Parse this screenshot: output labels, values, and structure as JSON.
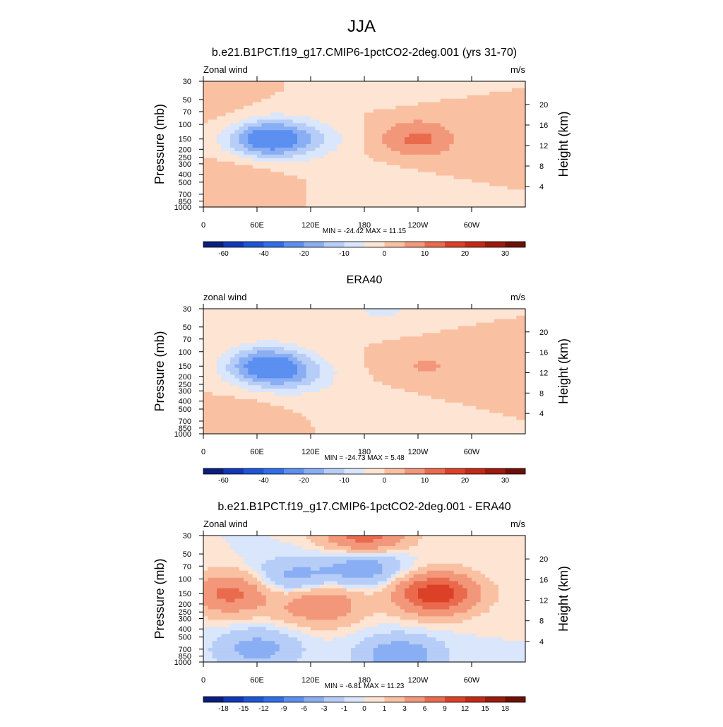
{
  "figure_title": "JJA",
  "chart_data": [
    {
      "type": "heatmap",
      "title": "b.e21.B1PCT.f19_g17.CMIP6-1pctCO2-2deg.001 (yrs 31-70)",
      "left_label": "Zonal wind",
      "right_label": "m/s",
      "ylabel": "Pressure (mb)",
      "y2label": "Height (km)",
      "x_ticks": [
        "0",
        "60E",
        "120E",
        "180",
        "120W",
        "60W"
      ],
      "x_tick_lon": [
        0,
        60,
        120,
        180,
        240,
        300
      ],
      "xlim": [
        0,
        360
      ],
      "pressure_ticks": [
        "30",
        "50",
        "70",
        "100",
        "150",
        "200",
        "250",
        "300",
        "400",
        "500",
        "700",
        "850",
        "1000"
      ],
      "pressure_values": [
        30,
        50,
        70,
        100,
        150,
        200,
        250,
        300,
        400,
        500,
        700,
        850,
        1000
      ],
      "height_ticks": [
        "4",
        "8",
        "12",
        "16",
        "20"
      ],
      "height_values": [
        4,
        8,
        12,
        16,
        20
      ],
      "ylim_pressure": [
        1000,
        30
      ],
      "stats": "MIN = -24.42  MAX =  11.15",
      "levels": [
        -70,
        -60,
        -50,
        -40,
        -30,
        -20,
        -15,
        -10,
        -5,
        0,
        5,
        10,
        15,
        20,
        25,
        30,
        35
      ],
      "colorbar_labels": [
        "-60",
        "-40",
        "-20",
        "-10",
        "0",
        "10",
        "20",
        "30"
      ],
      "colorbar_label_levels": [
        -60,
        -40,
        -20,
        -10,
        0,
        10,
        20,
        30
      ],
      "features": [
        {
          "lon": 70,
          "p": 150,
          "value": -24.4
        },
        {
          "lon": 120,
          "p": 150,
          "value": -8
        },
        {
          "lon": 240,
          "p": 150,
          "value": 11.2
        },
        {
          "lon": 200,
          "p": 30,
          "value": -4
        },
        {
          "lon": 200,
          "p": 500,
          "value": -3
        },
        {
          "lon": 40,
          "p": 400,
          "value": 4
        },
        {
          "lon": 30,
          "p": 80,
          "value": 2
        }
      ]
    },
    {
      "type": "heatmap",
      "title": "ERA40",
      "left_label": "zonal wind",
      "right_label": "m/s",
      "ylabel": "Pressure (mb)",
      "y2label": "Height (km)",
      "x_ticks": [
        "0",
        "60E",
        "120E",
        "180",
        "120W",
        "60W"
      ],
      "x_tick_lon": [
        0,
        60,
        120,
        180,
        240,
        300
      ],
      "xlim": [
        0,
        360
      ],
      "pressure_ticks": [
        "30",
        "50",
        "70",
        "100",
        "150",
        "200",
        "250",
        "300",
        "400",
        "500",
        "700",
        "850",
        "1000"
      ],
      "pressure_values": [
        30,
        50,
        70,
        100,
        150,
        200,
        250,
        300,
        400,
        500,
        700,
        850,
        1000
      ],
      "height_ticks": [
        "4",
        "8",
        "12",
        "16",
        "20"
      ],
      "height_values": [
        4,
        8,
        12,
        16,
        20
      ],
      "ylim_pressure": [
        1000,
        30
      ],
      "stats": "MIN = -24.73  MAX =   5.48",
      "levels": [
        -70,
        -60,
        -50,
        -40,
        -30,
        -20,
        -15,
        -10,
        -5,
        0,
        5,
        10,
        15,
        20,
        25,
        30,
        35
      ],
      "colorbar_labels": [
        "-60",
        "-40",
        "-20",
        "-10",
        "0",
        "10",
        "20",
        "30"
      ],
      "colorbar_label_levels": [
        -60,
        -40,
        -20,
        -10,
        0,
        10,
        20,
        30
      ],
      "features": [
        {
          "lon": 70,
          "p": 150,
          "value": -24.7
        },
        {
          "lon": 110,
          "p": 200,
          "value": -8
        },
        {
          "lon": 200,
          "p": 30,
          "value": -6
        },
        {
          "lon": 250,
          "p": 150,
          "value": 5.5
        },
        {
          "lon": 200,
          "p": 500,
          "value": -3
        },
        {
          "lon": 40,
          "p": 600,
          "value": 3
        }
      ]
    },
    {
      "type": "heatmap",
      "title": "b.e21.B1PCT.f19_g17.CMIP6-1pctCO2-2deg.001 - ERA40",
      "left_label": "Zonal wind",
      "right_label": "m/s",
      "ylabel": "Pressure (mb)",
      "y2label": "Height (km)",
      "x_ticks": [
        "0",
        "60E",
        "120E",
        "180",
        "120W",
        "60W"
      ],
      "x_tick_lon": [
        0,
        60,
        120,
        180,
        240,
        300
      ],
      "xlim": [
        0,
        360
      ],
      "pressure_ticks": [
        "30",
        "50",
        "70",
        "100",
        "150",
        "200",
        "250",
        "300",
        "400",
        "500",
        "700",
        "850",
        "1000"
      ],
      "pressure_values": [
        30,
        50,
        70,
        100,
        150,
        200,
        250,
        300,
        400,
        500,
        700,
        850,
        1000
      ],
      "height_ticks": [
        "4",
        "8",
        "12",
        "16",
        "20"
      ],
      "height_values": [
        4,
        8,
        12,
        16,
        20
      ],
      "ylim_pressure": [
        1000,
        30
      ],
      "stats": "MIN =  -6.81  MAX =  11.23",
      "levels": [
        -21,
        -18,
        -15,
        -12,
        -9,
        -6,
        -3,
        -1,
        0,
        1,
        3,
        6,
        9,
        12,
        15,
        18,
        21
      ],
      "colorbar_labels": [
        "-18",
        "-15",
        "-12",
        "-9",
        "-6",
        "-3",
        "-1",
        "0",
        "1",
        "3",
        "6",
        "9",
        "12",
        "15",
        "18"
      ],
      "colorbar_label_levels": [
        -18,
        -15,
        -12,
        -9,
        -6,
        -3,
        -1,
        0,
        1,
        3,
        6,
        9,
        12,
        15,
        18
      ],
      "features": [
        {
          "lon": 180,
          "p": 30,
          "value": 8
        },
        {
          "lon": 180,
          "p": 70,
          "value": -5
        },
        {
          "lon": 30,
          "p": 150,
          "value": 7
        },
        {
          "lon": 130,
          "p": 200,
          "value": 6
        },
        {
          "lon": 260,
          "p": 150,
          "value": 11.2
        },
        {
          "lon": 100,
          "p": 100,
          "value": -4
        },
        {
          "lon": 220,
          "p": 850,
          "value": -5
        },
        {
          "lon": 60,
          "p": 700,
          "value": -4
        }
      ]
    }
  ]
}
